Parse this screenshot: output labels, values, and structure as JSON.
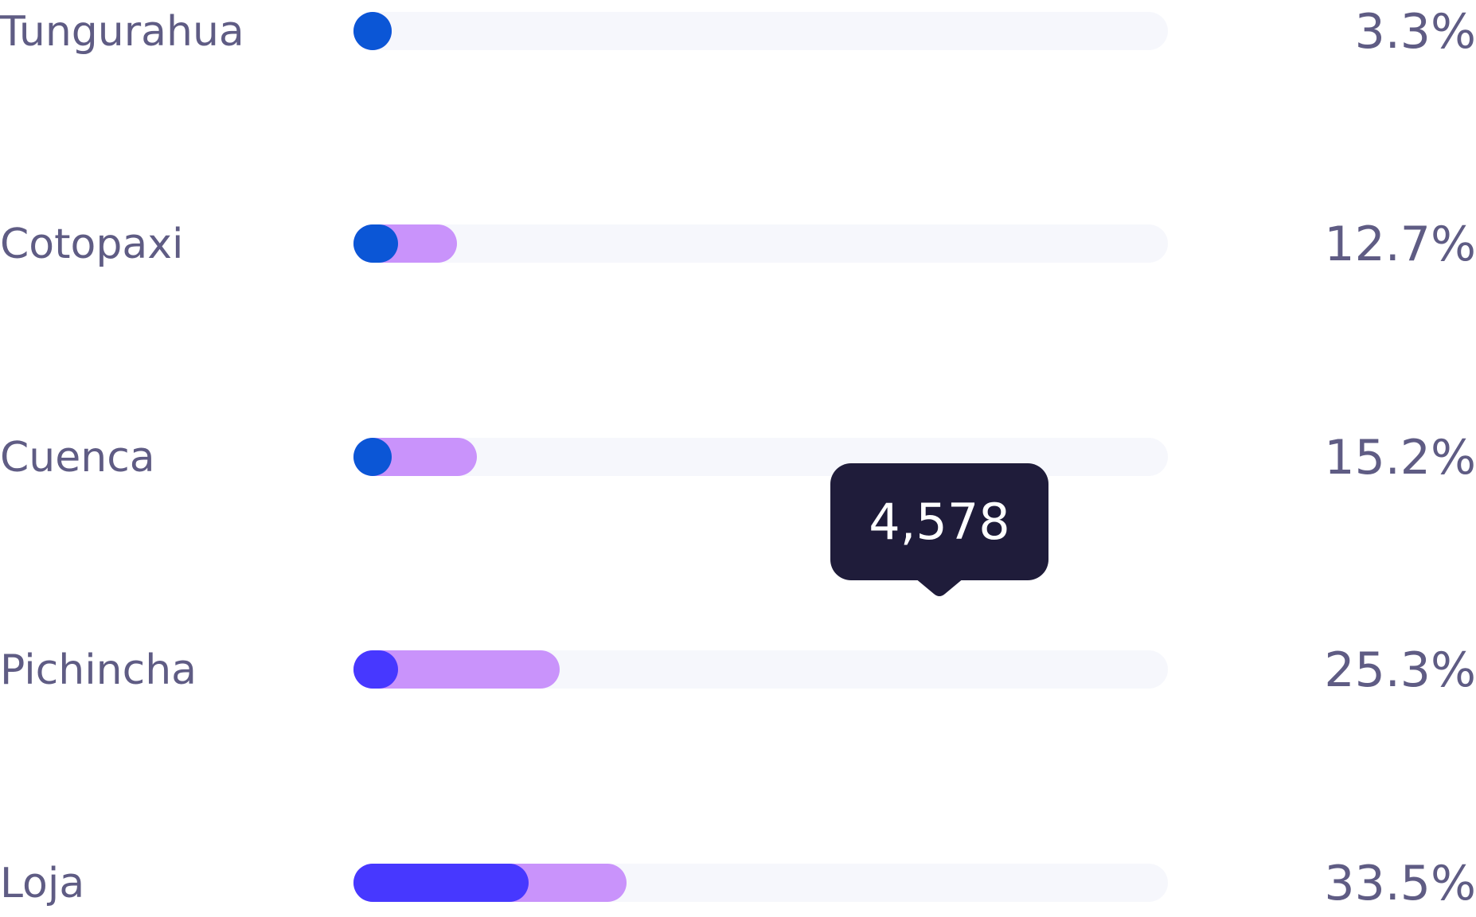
{
  "chart_data": {
    "type": "bar",
    "orientation": "horizontal",
    "categories": [
      "Tungurahua",
      "Cotopaxi",
      "Cuenca",
      "Pichincha",
      "Loja"
    ],
    "percent_labels": [
      "3.3%",
      "12.7%",
      "15.2%",
      "25.3%",
      "33.5%"
    ],
    "series": [
      {
        "values": [
          3.3,
          12.7,
          15.2,
          25.3,
          33.5
        ]
      },
      {
        "values": [
          1.8,
          5.5,
          3.4,
          5.5,
          21.5
        ]
      }
    ],
    "xlim": [
      0,
      100
    ],
    "tooltip": {
      "text": "4,578",
      "category": "Pichincha"
    },
    "colors": {
      "track": "#f6f7fc",
      "secondary": "#c993fb",
      "primary": [
        "#0b56d6",
        "#0b56d6",
        "#0b56d6",
        "#4738ff",
        "#4738ff"
      ],
      "text": "#5f5c84",
      "tooltip_bg": "#1f1c3a"
    }
  }
}
